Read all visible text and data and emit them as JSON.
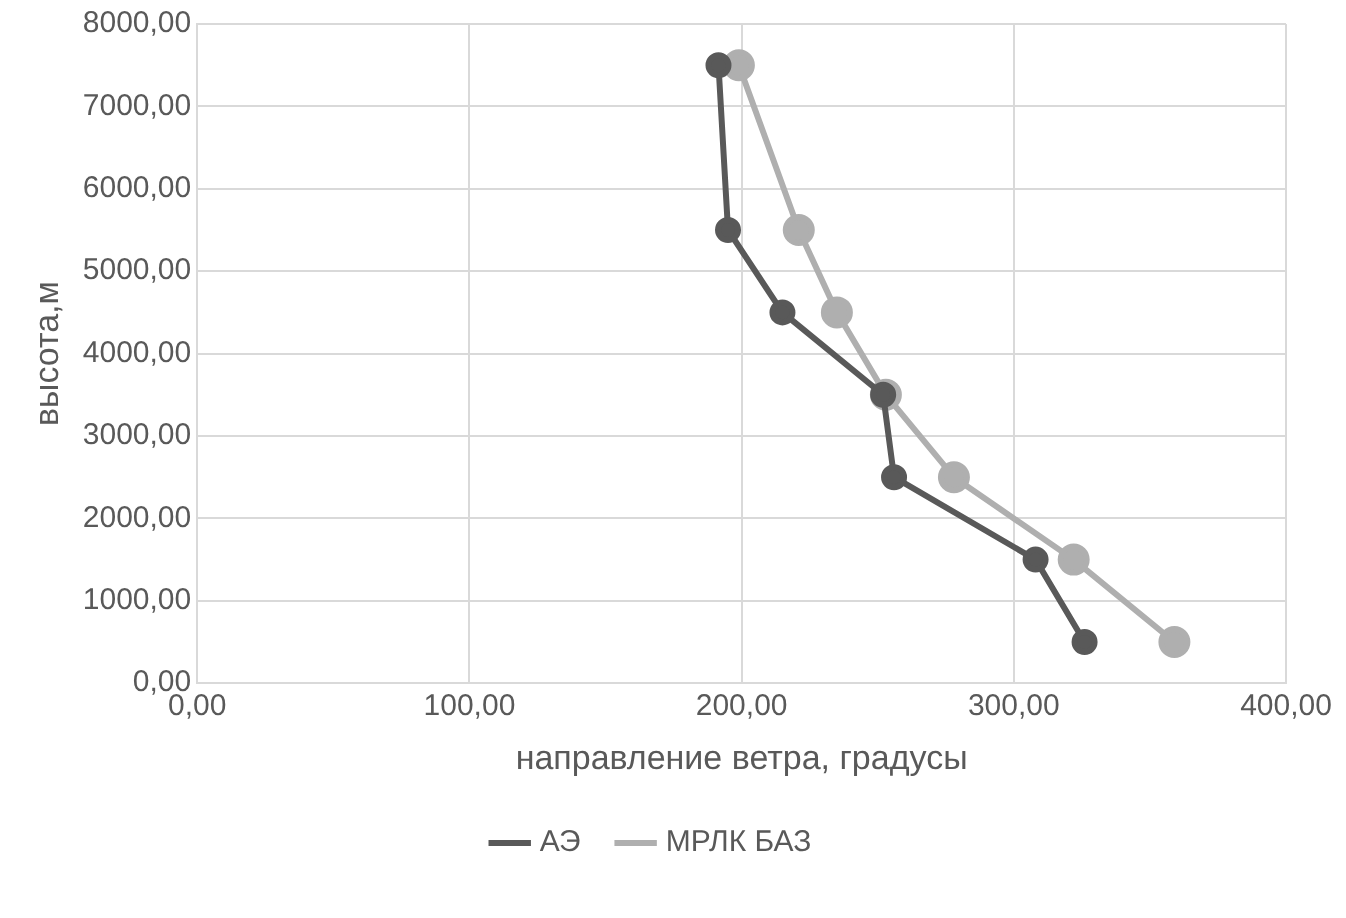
{
  "chart_data": {
    "type": "line",
    "xlabel": "направление ветра, градусы",
    "ylabel": "высота,м",
    "series": [
      {
        "name": "АЭ",
        "color": "#595959",
        "x": [
          191.5,
          195,
          215,
          252,
          256,
          308,
          326
        ],
        "values": [
          7500,
          5500,
          4500,
          3500,
          2500,
          1500,
          500
        ]
      },
      {
        "name": "МРЛК БАЗ",
        "color": "#afafaf",
        "x": [
          199,
          221,
          235,
          253,
          278,
          322,
          359
        ],
        "values": [
          7500,
          5500,
          4500,
          3500,
          2500,
          1500,
          500
        ]
      }
    ],
    "xlim": [
      0,
      400
    ],
    "xticks": [
      {
        "value": 0,
        "label": "0,00"
      },
      {
        "value": 100,
        "label": "100,00"
      },
      {
        "value": 200,
        "label": "200,00"
      },
      {
        "value": 300,
        "label": "300,00"
      },
      {
        "value": 400,
        "label": "400,00"
      }
    ],
    "ylim": [
      0,
      8000
    ],
    "yticks": [
      {
        "value": 0,
        "label": "0,00"
      },
      {
        "value": 1000,
        "label": "1000,00"
      },
      {
        "value": 2000,
        "label": "2000,00"
      },
      {
        "value": 3000,
        "label": "3000,00"
      },
      {
        "value": 4000,
        "label": "4000,00"
      },
      {
        "value": 5000,
        "label": "5000,00"
      },
      {
        "value": 6000,
        "label": "6000,00"
      },
      {
        "value": 7000,
        "label": "7000,00"
      },
      {
        "value": 8000,
        "label": "8000,00"
      }
    ],
    "grid": true,
    "legend": "bottom",
    "marker": "circle"
  }
}
